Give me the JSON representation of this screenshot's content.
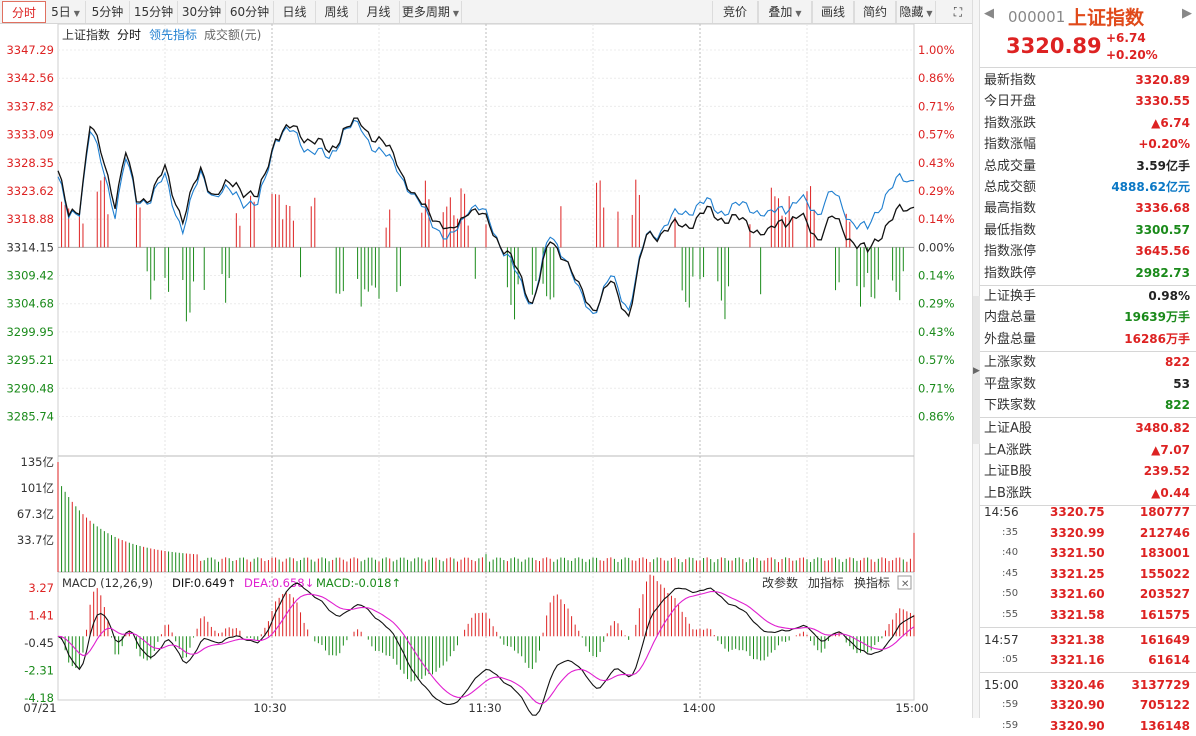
{
  "toolbar": {
    "periods": [
      "分时",
      "5日",
      "5分钟",
      "15分钟",
      "30分钟",
      "60分钟",
      "日线",
      "周线",
      "月线",
      "更多周期"
    ],
    "active": "分时",
    "tools": [
      "竞价",
      "叠加",
      "画线",
      "简约",
      "隐藏"
    ]
  },
  "legend": {
    "name": "上证指数",
    "mode": "分时",
    "lead": "领先指标",
    "vol": "成交额(元)"
  },
  "axis": {
    "price_ticks": [
      "3347.29",
      "3342.56",
      "3337.82",
      "3333.09",
      "3328.35",
      "3323.62",
      "3318.88",
      "3314.15",
      "3309.42",
      "3304.68",
      "3299.95",
      "3295.21",
      "3290.48",
      "3285.74"
    ],
    "pct_ticks": [
      "1.00%",
      "0.86%",
      "0.71%",
      "0.57%",
      "0.43%",
      "0.29%",
      "0.14%",
      "0.00%",
      "0.14%",
      "0.29%",
      "0.43%",
      "0.57%",
      "0.71%",
      "0.86%"
    ],
    "vol_ticks": [
      "135亿",
      "101亿",
      "67.3亿",
      "33.7亿"
    ],
    "macd_ticks": [
      "3.27",
      "1.41",
      "-0.45",
      "-2.31",
      "-4.18"
    ],
    "time_ticks": [
      "07/21",
      "10:30",
      "11:30",
      "14:00",
      "15:00"
    ]
  },
  "macd": {
    "label": "MACD (12,26,9)",
    "dif": "DIF:0.649↑",
    "dea": "DEA:0.658↓",
    "macd": "MACD:-0.018↑",
    "buttons": [
      "改参数",
      "加指标",
      "换指标"
    ]
  },
  "colors": {
    "up": "#d22",
    "down": "#1a8a1a",
    "index": "#111111",
    "lead": "#1f7fd0",
    "dea": "#e020d0",
    "grid": "#e6e6e6"
  },
  "quote": {
    "code": "000001",
    "name": "上证指数",
    "price": "3320.89",
    "change": "+6.74",
    "pct": "+0.20%"
  },
  "stats1": [
    {
      "k": "最新指数",
      "v": "3320.89",
      "c": "red"
    },
    {
      "k": "今日开盘",
      "v": "3330.55",
      "c": "red"
    },
    {
      "k": "指数涨跌",
      "v": "▲6.74",
      "c": "red"
    },
    {
      "k": "指数涨幅",
      "v": "+0.20%",
      "c": "red"
    },
    {
      "k": "总成交量",
      "v": "3.59亿手",
      "c": "dark"
    },
    {
      "k": "总成交额",
      "v": "4888.62亿元",
      "c": "blue"
    },
    {
      "k": "最高指数",
      "v": "3336.68",
      "c": "red"
    },
    {
      "k": "最低指数",
      "v": "3300.57",
      "c": "green"
    },
    {
      "k": "指数涨停",
      "v": "3645.56",
      "c": "red"
    },
    {
      "k": "指数跌停",
      "v": "2982.73",
      "c": "green"
    }
  ],
  "stats2": [
    {
      "k": "上证换手",
      "v": "0.98%",
      "c": "dark"
    },
    {
      "k": "内盘总量",
      "v": "19639万手",
      "c": "green"
    },
    {
      "k": "外盘总量",
      "v": "16286万手",
      "c": "red"
    }
  ],
  "stats3": [
    {
      "k": "上涨家数",
      "v": "822",
      "c": "red"
    },
    {
      "k": "平盘家数",
      "v": "53",
      "c": "dark"
    },
    {
      "k": "下跌家数",
      "v": "822",
      "c": "green"
    }
  ],
  "stats4": [
    {
      "k": "上证A股",
      "v": "3480.82",
      "c": "red"
    },
    {
      "k": "上A涨跌",
      "v": "▲7.07",
      "c": "red"
    },
    {
      "k": "上证B股",
      "v": "239.52",
      "c": "red"
    },
    {
      "k": "上B涨跌",
      "v": "▲0.44",
      "c": "red"
    }
  ],
  "ticks": [
    {
      "t": "14:56",
      "p": "3320.75",
      "v": "180777"
    },
    {
      "t": ":35",
      "p": "3320.99",
      "v": "212746"
    },
    {
      "t": ":40",
      "p": "3321.50",
      "v": "183001"
    },
    {
      "t": ":45",
      "p": "3321.25",
      "v": "155022"
    },
    {
      "t": ":50",
      "p": "3321.60",
      "v": "203527"
    },
    {
      "t": ":55",
      "p": "3321.58",
      "v": "161575"
    },
    {
      "t": "14:57",
      "p": "3321.38",
      "v": "161649"
    },
    {
      "t": ":05",
      "p": "3321.16",
      "v": "61614"
    },
    {
      "t": "15:00",
      "p": "3320.46",
      "v": "3137729"
    },
    {
      "t": ":59",
      "p": "3320.90",
      "v": "705122"
    },
    {
      "t": ":59",
      "p": "3320.90",
      "v": "136148"
    }
  ]
}
